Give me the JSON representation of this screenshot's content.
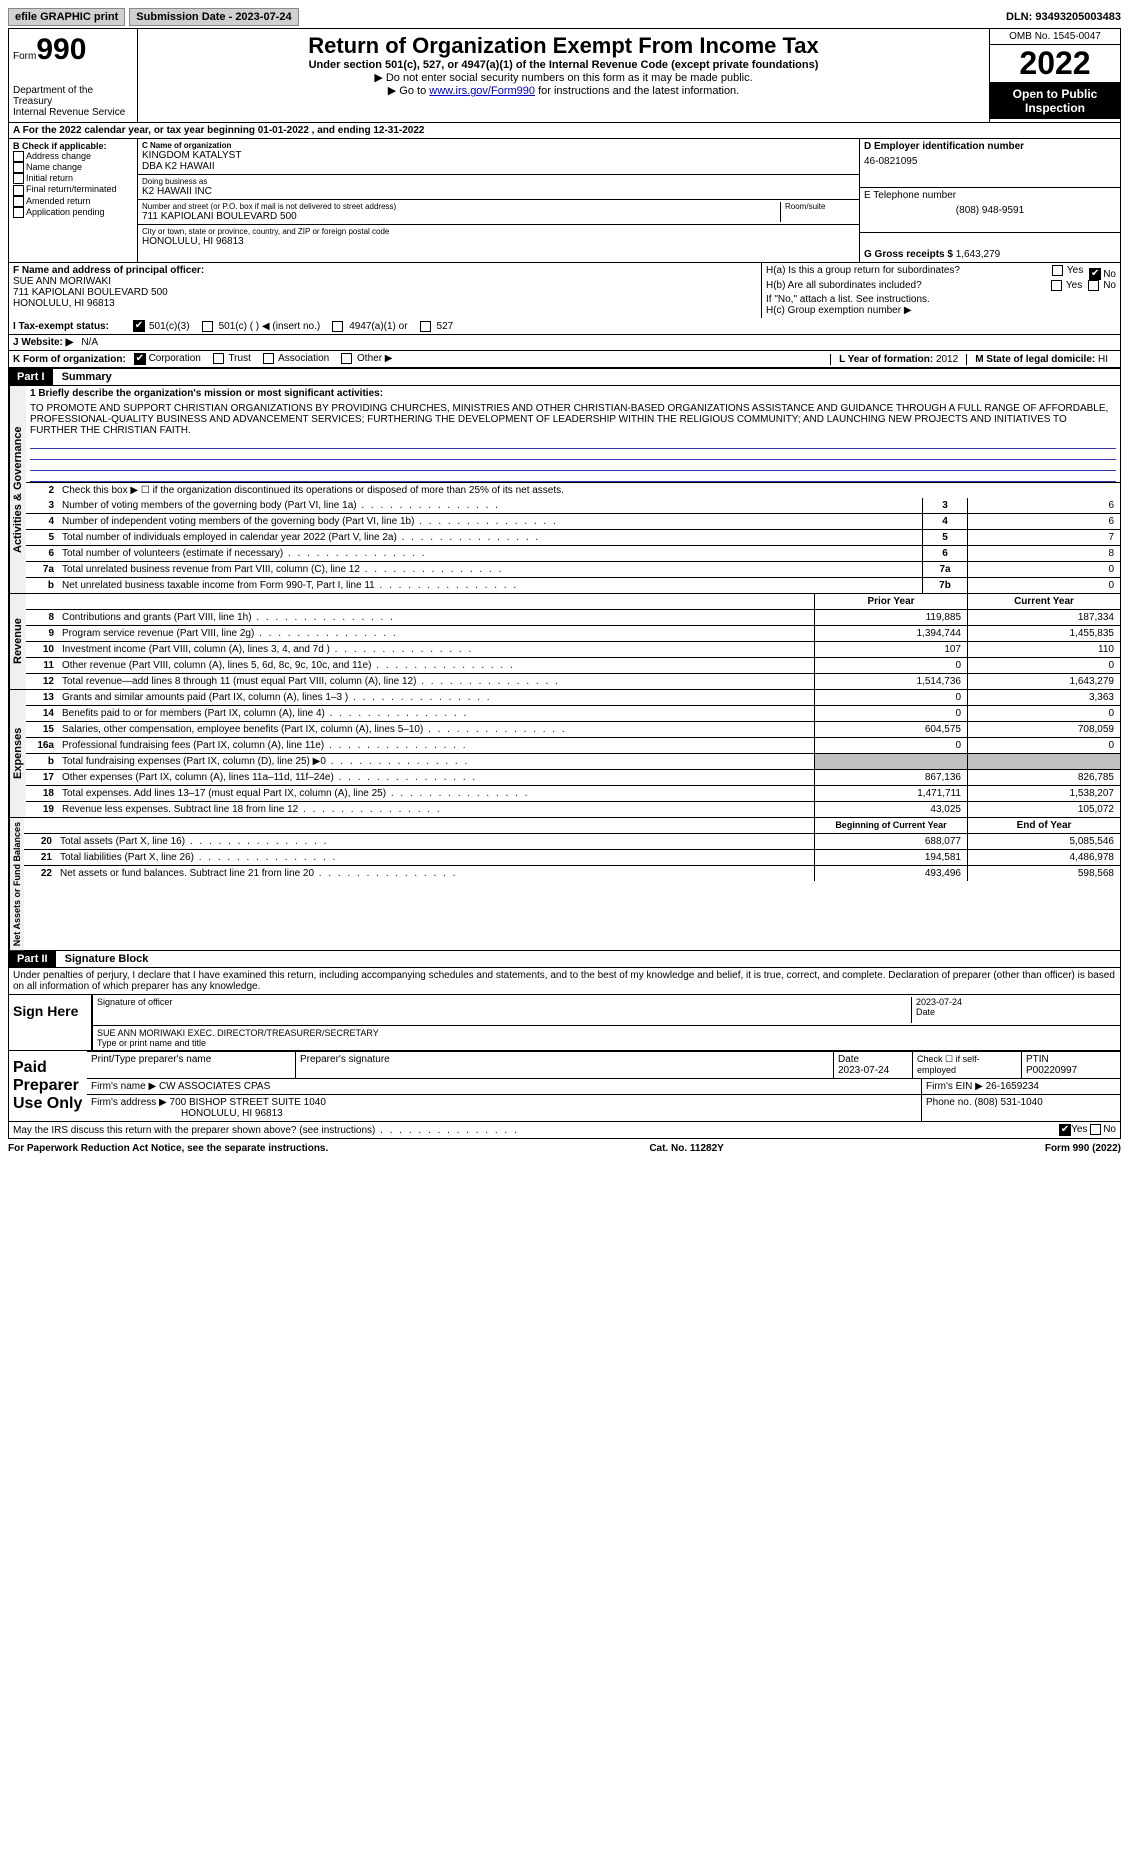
{
  "top": {
    "efile": "efile GRAPHIC print",
    "submission": "Submission Date - 2023-07-24",
    "dln": "DLN: 93493205003483"
  },
  "header": {
    "form_word": "Form",
    "form_num": "990",
    "dept": "Department of the Treasury",
    "irs": "Internal Revenue Service",
    "title": "Return of Organization Exempt From Income Tax",
    "sub1": "Under section 501(c), 527, or 4947(a)(1) of the Internal Revenue Code (except private foundations)",
    "sub2": "Do not enter social security numbers on this form as it may be made public.",
    "sub3_a": "Go to ",
    "sub3_link": "www.irs.gov/Form990",
    "sub3_b": " for instructions and the latest information.",
    "omb": "OMB No. 1545-0047",
    "year": "2022",
    "inspection": "Open to Public Inspection"
  },
  "row_a": "For the 2022 calendar year, or tax year beginning 01-01-2022    , and ending 12-31-2022",
  "col_b": {
    "title": "B Check if applicable:",
    "items": [
      "Address change",
      "Name change",
      "Initial return",
      "Final return/terminated",
      "Amended return",
      "Application pending"
    ]
  },
  "col_c": {
    "name_label": "C Name of organization",
    "name1": "KINGDOM KATALYST",
    "name2": "DBA K2 HAWAII",
    "dba_label": "Doing business as",
    "dba": "K2 HAWAII INC",
    "street_label": "Number and street (or P.O. box if mail is not delivered to street address)",
    "room_label": "Room/suite",
    "street": "711 KAPIOLANI BOULEVARD 500",
    "city_label": "City or town, state or province, country, and ZIP or foreign postal code",
    "city": "HONOLULU, HI  96813"
  },
  "col_d": {
    "ein_label": "D Employer identification number",
    "ein": "46-0821095",
    "phone_label": "E Telephone number",
    "phone": "(808) 948-9591",
    "gross_label": "G Gross receipts $",
    "gross": "1,643,279"
  },
  "col_f": {
    "label": "F  Name and address of principal officer:",
    "name": "SUE ANN MORIWAKI",
    "addr1": "711 KAPIOLANI BOULEVARD 500",
    "addr2": "HONOLULU, HI  96813"
  },
  "col_h": {
    "ha": "H(a)  Is this a group return for subordinates?",
    "hb": "H(b)  Are all subordinates included?",
    "hb_note": "If \"No,\" attach a list. See instructions.",
    "hc": "H(c)  Group exemption number ▶"
  },
  "row_i": {
    "label": "I   Tax-exempt status:",
    "opts": [
      "501(c)(3)",
      "501(c) (  ) ◀ (insert no.)",
      "4947(a)(1) or",
      "527"
    ]
  },
  "row_j": {
    "label": "J   Website: ▶",
    "val": "N/A"
  },
  "row_k": {
    "label": "K Form of organization:",
    "opts": [
      "Corporation",
      "Trust",
      "Association",
      "Other ▶"
    ]
  },
  "row_l": {
    "label": "L Year of formation:",
    "val": "2012"
  },
  "row_m": {
    "label": "M State of legal domicile:",
    "val": "HI"
  },
  "part1": {
    "header": "Part I",
    "title": "Summary",
    "mission_label": "1  Briefly describe the organization's mission or most significant activities:",
    "mission": "TO PROMOTE AND SUPPORT CHRISTIAN ORGANIZATIONS BY PROVIDING CHURCHES, MINISTRIES AND OTHER CHRISTIAN-BASED ORGANIZATIONS ASSISTANCE AND GUIDANCE THROUGH A FULL RANGE OF AFFORDABLE, PROFESSIONAL-QUALITY BUSINESS AND ADVANCEMENT SERVICES; FURTHERING THE DEVELOPMENT OF LEADERSHIP WITHIN THE RELIGIOUS COMMUNITY; AND LAUNCHING NEW PROJECTS AND INITIATIVES TO FURTHER THE CHRISTIAN FAITH.",
    "line2": "Check this box ▶ ☐  if the organization discontinued its operations or disposed of more than 25% of its net assets.",
    "vlabels": {
      "gov": "Activities & Governance",
      "rev": "Revenue",
      "exp": "Expenses",
      "net": "Net Assets or Fund Balances"
    },
    "gov_lines": [
      {
        "n": "3",
        "t": "Number of voting members of the governing body (Part VI, line 1a)",
        "c": "3",
        "v": "6"
      },
      {
        "n": "4",
        "t": "Number of independent voting members of the governing body (Part VI, line 1b)",
        "c": "4",
        "v": "6"
      },
      {
        "n": "5",
        "t": "Total number of individuals employed in calendar year 2022 (Part V, line 2a)",
        "c": "5",
        "v": "7"
      },
      {
        "n": "6",
        "t": "Total number of volunteers (estimate if necessary)",
        "c": "6",
        "v": "8"
      },
      {
        "n": "7a",
        "t": "Total unrelated business revenue from Part VIII, column (C), line 12",
        "c": "7a",
        "v": "0"
      },
      {
        "n": "b",
        "t": "Net unrelated business taxable income from Form 990-T, Part I, line 11",
        "c": "7b",
        "v": "0"
      }
    ],
    "col_headers": {
      "prior": "Prior Year",
      "current": "Current Year",
      "boy": "Beginning of Current Year",
      "eoy": "End of Year"
    },
    "rev_lines": [
      {
        "n": "8",
        "t": "Contributions and grants (Part VIII, line 1h)",
        "p": "119,885",
        "c": "187,334"
      },
      {
        "n": "9",
        "t": "Program service revenue (Part VIII, line 2g)",
        "p": "1,394,744",
        "c": "1,455,835"
      },
      {
        "n": "10",
        "t": "Investment income (Part VIII, column (A), lines 3, 4, and 7d )",
        "p": "107",
        "c": "110"
      },
      {
        "n": "11",
        "t": "Other revenue (Part VIII, column (A), lines 5, 6d, 8c, 9c, 10c, and 11e)",
        "p": "0",
        "c": "0"
      },
      {
        "n": "12",
        "t": "Total revenue—add lines 8 through 11 (must equal Part VIII, column (A), line 12)",
        "p": "1,514,736",
        "c": "1,643,279"
      }
    ],
    "exp_lines": [
      {
        "n": "13",
        "t": "Grants and similar amounts paid (Part IX, column (A), lines 1–3 )",
        "p": "0",
        "c": "3,363"
      },
      {
        "n": "14",
        "t": "Benefits paid to or for members (Part IX, column (A), line 4)",
        "p": "0",
        "c": "0"
      },
      {
        "n": "15",
        "t": "Salaries, other compensation, employee benefits (Part IX, column (A), lines 5–10)",
        "p": "604,575",
        "c": "708,059"
      },
      {
        "n": "16a",
        "t": "Professional fundraising fees (Part IX, column (A), line 11e)",
        "p": "0",
        "c": "0"
      },
      {
        "n": "b",
        "t": "Total fundraising expenses (Part IX, column (D), line 25) ▶0",
        "p": "",
        "c": "",
        "shaded": true
      },
      {
        "n": "17",
        "t": "Other expenses (Part IX, column (A), lines 11a–11d, 11f–24e)",
        "p": "867,136",
        "c": "826,785"
      },
      {
        "n": "18",
        "t": "Total expenses. Add lines 13–17 (must equal Part IX, column (A), line 25)",
        "p": "1,471,711",
        "c": "1,538,207"
      },
      {
        "n": "19",
        "t": "Revenue less expenses. Subtract line 18 from line 12",
        "p": "43,025",
        "c": "105,072"
      }
    ],
    "net_lines": [
      {
        "n": "20",
        "t": "Total assets (Part X, line 16)",
        "p": "688,077",
        "c": "5,085,546"
      },
      {
        "n": "21",
        "t": "Total liabilities (Part X, line 26)",
        "p": "194,581",
        "c": "4,486,978"
      },
      {
        "n": "22",
        "t": "Net assets or fund balances. Subtract line 21 from line 20",
        "p": "493,496",
        "c": "598,568"
      }
    ]
  },
  "part2": {
    "header": "Part II",
    "title": "Signature Block",
    "penalty": "Under penalties of perjury, I declare that I have examined this return, including accompanying schedules and statements, and to the best of my knowledge and belief, it is true, correct, and complete. Declaration of preparer (other than officer) is based on all information of which preparer has any knowledge.",
    "sign_here": "Sign Here",
    "sig_officer": "Signature of officer",
    "sig_date": "2023-07-24",
    "date_label": "Date",
    "officer_name": "SUE ANN MORIWAKI EXEC. DIRECTOR/TREASURER/SECRETARY",
    "type_name": "Type or print name and title",
    "paid": "Paid Preparer Use Only",
    "prep_headers": {
      "name": "Print/Type preparer's name",
      "sig": "Preparer's signature",
      "date": "Date",
      "check": "Check ☐ if self-employed",
      "ptin": "PTIN"
    },
    "prep_date": "2023-07-24",
    "ptin": "P00220997",
    "firm_name_label": "Firm's name    ▶",
    "firm_name": "CW ASSOCIATES CPAS",
    "firm_ein_label": "Firm's EIN ▶",
    "firm_ein": "26-1659234",
    "firm_addr_label": "Firm's address ▶",
    "firm_addr1": "700 BISHOP STREET SUITE 1040",
    "firm_addr2": "HONOLULU, HI  96813",
    "phone_label": "Phone no.",
    "phone": "(808) 531-1040",
    "discuss": "May the IRS discuss this return with the preparer shown above? (see instructions)"
  },
  "footer": {
    "left": "For Paperwork Reduction Act Notice, see the separate instructions.",
    "mid": "Cat. No. 11282Y",
    "right": "Form 990 (2022)"
  },
  "yn": {
    "yes": "Yes",
    "no": "No"
  }
}
